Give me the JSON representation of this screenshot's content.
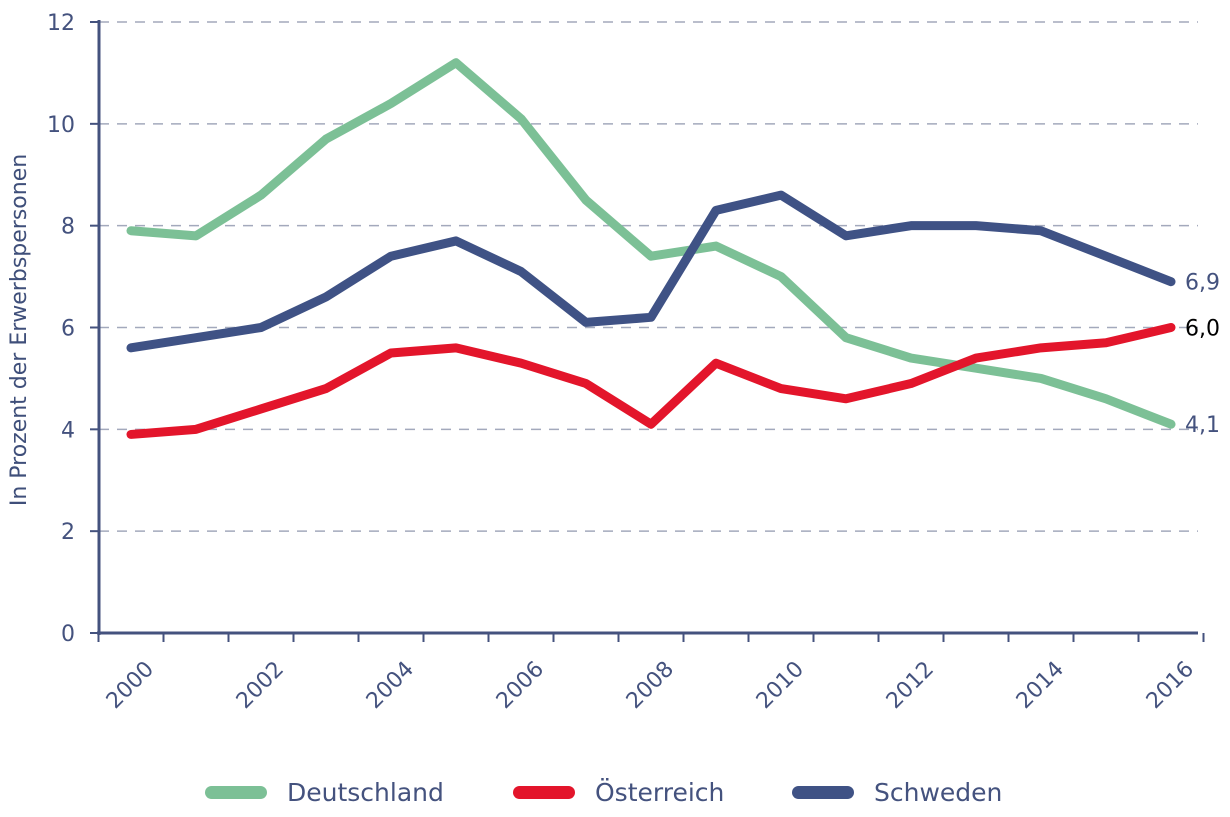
{
  "chart_data": {
    "type": "line",
    "ylabel": "In Prozent der Erwerbspersonen",
    "xlabel": "",
    "ylim": [
      0,
      12
    ],
    "yticks": [
      "0",
      "2",
      "4",
      "6",
      "8",
      "10",
      "12"
    ],
    "x": [
      2000,
      2001,
      2002,
      2003,
      2004,
      2005,
      2006,
      2007,
      2008,
      2009,
      2010,
      2011,
      2012,
      2013,
      2014,
      2015,
      2016
    ],
    "xtick_labels": [
      "2000",
      "2002",
      "2004",
      "2006",
      "2008",
      "2010",
      "2012",
      "2014",
      "2016"
    ],
    "grid": "horizontal dashed",
    "legend": "bottom",
    "series": [
      {
        "name": "Deutschland",
        "color": "#7cc096",
        "values": [
          7.9,
          7.8,
          8.6,
          9.7,
          10.4,
          11.2,
          10.1,
          8.5,
          7.4,
          7.6,
          7.0,
          5.8,
          5.4,
          5.2,
          5.0,
          4.6,
          4.1
        ],
        "end_label": "4,1",
        "end_label_color": "#44527e"
      },
      {
        "name": "Österreich",
        "color": "#e3152b",
        "values": [
          3.9,
          4.0,
          4.4,
          4.8,
          5.5,
          5.6,
          5.3,
          4.9,
          4.1,
          5.3,
          4.8,
          4.6,
          4.9,
          5.4,
          5.6,
          5.7,
          6.0
        ],
        "end_label": "6,0",
        "end_label_color": "#000000"
      },
      {
        "name": "Schweden",
        "color": "#3f5285",
        "values": [
          5.6,
          5.8,
          6.0,
          6.6,
          7.4,
          7.7,
          7.1,
          6.1,
          6.2,
          8.3,
          8.6,
          7.8,
          8.0,
          8.0,
          7.9,
          7.4,
          6.9
        ],
        "end_label": "6,9",
        "end_label_color": "#44527e"
      }
    ]
  }
}
